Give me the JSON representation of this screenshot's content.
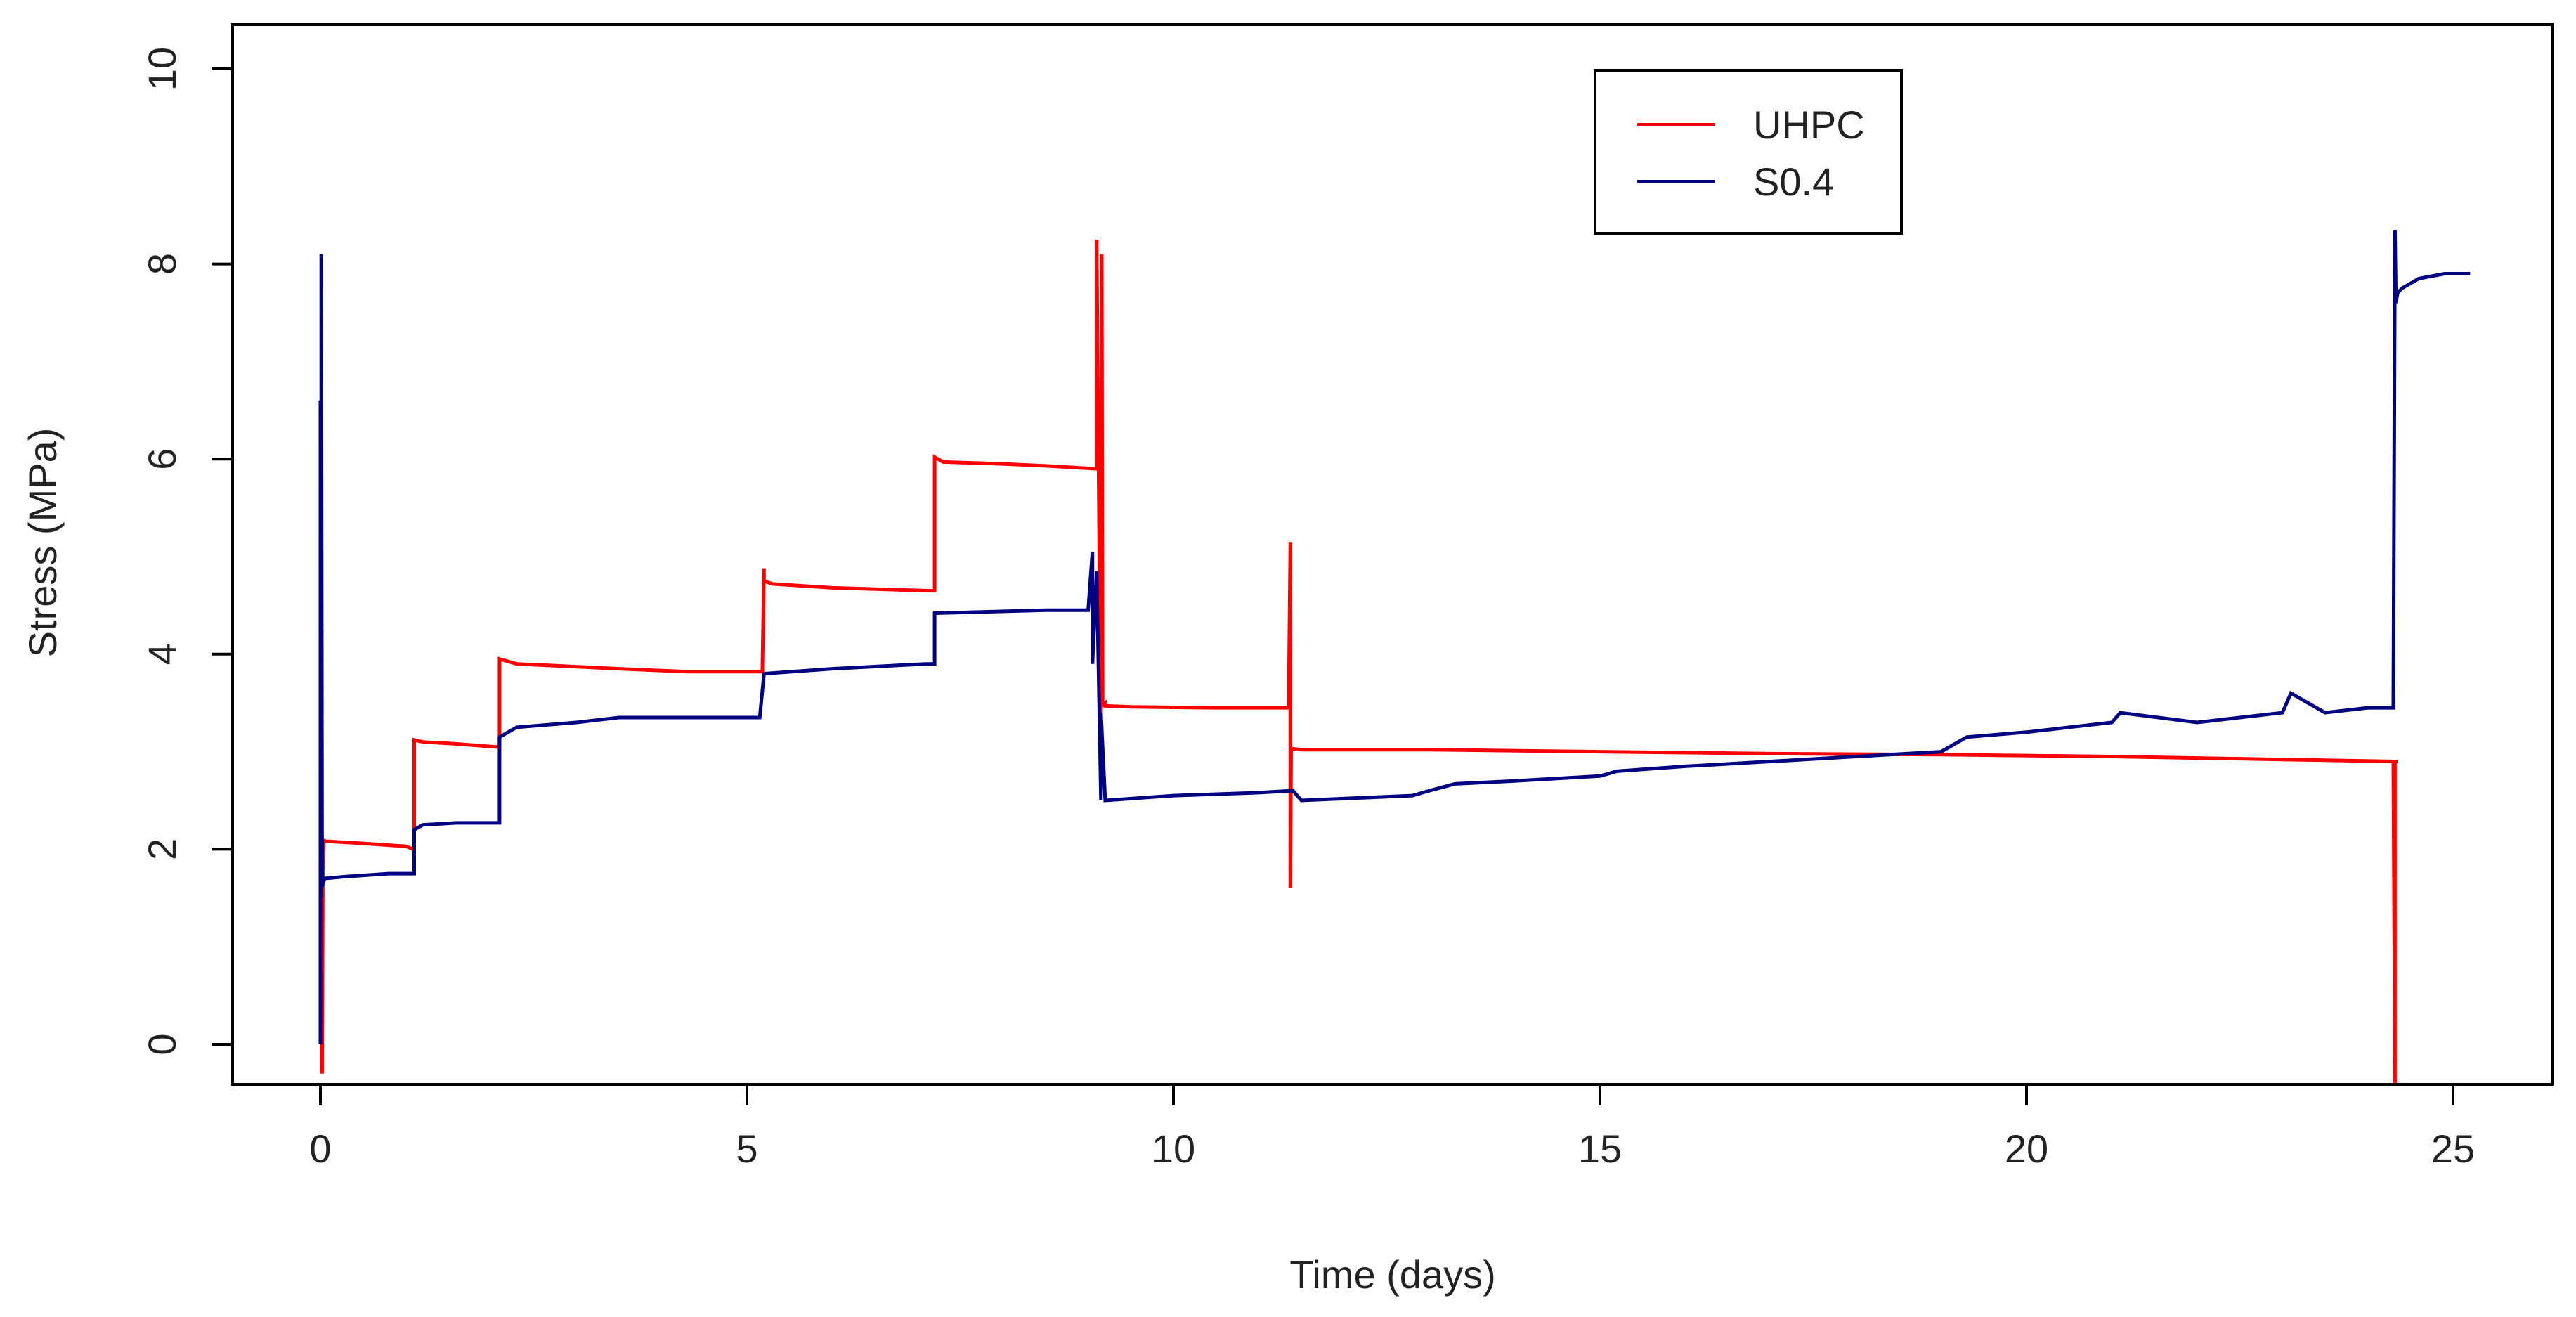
{
  "chart_data": {
    "type": "line",
    "title": "",
    "xlabel": "Time (days)",
    "ylabel": "Stress (MPa)",
    "xlim": [
      0,
      25
    ],
    "ylim": [
      0,
      10
    ],
    "x_ticks": [
      0,
      5,
      10,
      15,
      20,
      25
    ],
    "y_ticks": [
      0,
      2,
      4,
      6,
      8,
      10
    ],
    "x_tick_labels": [
      "0",
      "5",
      "10",
      "15",
      "20",
      "25"
    ],
    "y_tick_labels": [
      "0",
      "2",
      "4",
      "6",
      "8",
      "10"
    ],
    "grid": false,
    "legend_position": "top-center",
    "series": [
      {
        "name": "UHPC",
        "color": "#ff0000",
        "x": [
          0.02,
          0.02,
          0.03,
          0.03,
          0.04,
          0.05,
          0.1,
          0.5,
          1.0,
          1.09,
          1.1,
          1.1,
          1.2,
          1.6,
          2.05,
          2.1,
          2.1,
          2.3,
          2.8,
          3.5,
          4.3,
          5.18,
          5.2,
          5.2,
          5.3,
          6.0,
          7.15,
          7.2,
          7.2,
          7.3,
          8.0,
          8.5,
          9.1,
          9.1,
          9.15,
          9.16,
          9.17,
          9.2,
          9.2,
          9.5,
          10.5,
          11.35,
          11.37,
          11.37,
          11.38,
          11.38,
          11.4,
          11.5,
          13.0,
          15.0,
          17.0,
          19.0,
          21.0,
          23.0,
          24.3,
          24.32,
          24.32,
          24.35
        ],
        "values": [
          1.7,
          -0.3,
          2.1,
          1.8,
          2.1,
          2.08,
          2.08,
          2.06,
          2.03,
          2.0,
          2.0,
          3.12,
          3.1,
          3.08,
          3.05,
          3.05,
          3.95,
          3.9,
          3.88,
          3.85,
          3.82,
          3.82,
          4.88,
          4.75,
          4.72,
          4.68,
          4.65,
          4.65,
          6.02,
          5.97,
          5.95,
          5.93,
          5.9,
          8.25,
          2.95,
          8.1,
          3.48,
          3.5,
          3.47,
          3.46,
          3.45,
          3.45,
          5.15,
          1.6,
          3.05,
          3.03,
          3.03,
          3.02,
          3.02,
          3.0,
          2.98,
          2.97,
          2.95,
          2.92,
          2.9,
          -0.4,
          2.9,
          2.9
        ]
      },
      {
        "name": "S0.4",
        "color": "#000080",
        "x": [
          0.0,
          0.0,
          0.01,
          0.01,
          0.02,
          0.03,
          0.05,
          0.3,
          0.8,
          1.1,
          1.1,
          1.2,
          1.6,
          2.1,
          2.1,
          2.3,
          3.0,
          3.5,
          4.5,
          5.15,
          5.2,
          5.2,
          6.0,
          7.1,
          7.2,
          7.2,
          8.5,
          8.9,
          9.0,
          9.05,
          9.05,
          9.1,
          9.15,
          9.15,
          9.2,
          10.0,
          11.0,
          11.4,
          11.5,
          12.8,
          13.0,
          13.3,
          14.0,
          15.0,
          15.2,
          16.0,
          17.0,
          18.0,
          19.0,
          19.2,
          19.3,
          20.0,
          20.5,
          21.0,
          21.1,
          22.0,
          22.5,
          23.0,
          23.1,
          23.5,
          24.0,
          24.3,
          24.32,
          24.33,
          24.35,
          24.4,
          24.6,
          24.9,
          25.2
        ],
        "values": [
          0.0,
          6.6,
          1.5,
          8.1,
          1.7,
          1.65,
          1.7,
          1.72,
          1.75,
          1.75,
          2.2,
          2.25,
          2.27,
          2.27,
          3.15,
          3.25,
          3.3,
          3.35,
          3.35,
          3.35,
          3.8,
          3.8,
          3.85,
          3.9,
          3.9,
          4.42,
          4.45,
          4.45,
          4.45,
          5.05,
          3.9,
          4.85,
          2.5,
          3.4,
          2.5,
          2.55,
          2.58,
          2.6,
          2.5,
          2.55,
          2.6,
          2.67,
          2.7,
          2.75,
          2.8,
          2.85,
          2.9,
          2.95,
          3.0,
          3.1,
          3.15,
          3.2,
          3.25,
          3.3,
          3.4,
          3.3,
          3.35,
          3.4,
          3.6,
          3.4,
          3.45,
          3.45,
          8.35,
          7.6,
          7.7,
          7.75,
          7.85,
          7.9,
          7.9
        ]
      }
    ]
  }
}
